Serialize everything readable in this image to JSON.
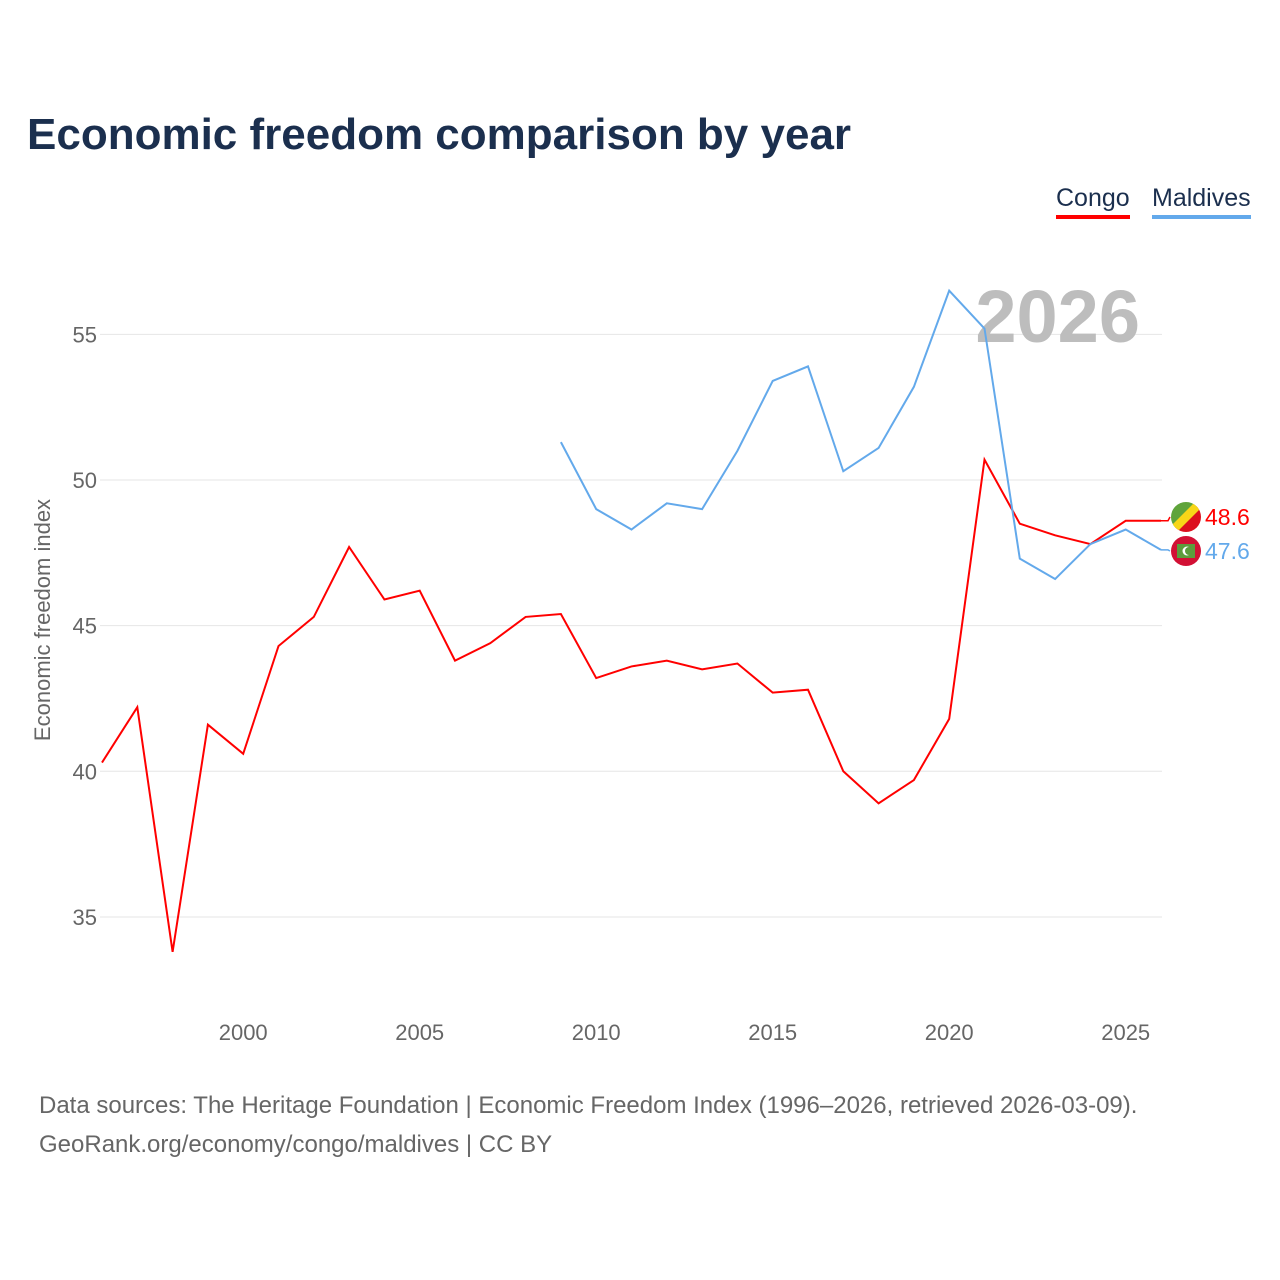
{
  "chart_data": {
    "type": "line",
    "title": "Economic freedom comparison by year",
    "ylabel": "Economic freedom index",
    "xlabel": "",
    "ylim": [
      32.5,
      57.5
    ],
    "xlim": [
      1996,
      2026
    ],
    "yticks": [
      35,
      40,
      45,
      50,
      55
    ],
    "xticks": [
      2000,
      2005,
      2010,
      2015,
      2020,
      2025
    ],
    "watermark_year": "2026",
    "legend_position": "top-right",
    "series": [
      {
        "name": "Congo",
        "color": "#ff0000",
        "end_label": "48.6",
        "x": [
          1996,
          1997,
          1998,
          1999,
          2000,
          2001,
          2002,
          2003,
          2004,
          2005,
          2006,
          2007,
          2008,
          2009,
          2010,
          2011,
          2012,
          2013,
          2014,
          2015,
          2016,
          2017,
          2018,
          2019,
          2020,
          2021,
          2022,
          2023,
          2024,
          2025,
          2026
        ],
        "values": [
          40.3,
          42.2,
          33.8,
          41.6,
          40.6,
          44.3,
          45.3,
          47.7,
          45.9,
          46.2,
          43.8,
          44.4,
          45.3,
          45.4,
          43.2,
          43.6,
          43.8,
          43.5,
          43.7,
          42.7,
          42.8,
          40.0,
          38.9,
          39.7,
          41.8,
          50.7,
          48.5,
          48.1,
          47.8,
          48.6,
          48.6
        ]
      },
      {
        "name": "Maldives",
        "color": "#63a9eb",
        "end_label": "47.6",
        "x": [
          2009,
          2010,
          2011,
          2012,
          2013,
          2014,
          2015,
          2016,
          2017,
          2018,
          2019,
          2020,
          2021,
          2022,
          2023,
          2024,
          2025,
          2026
        ],
        "values": [
          51.3,
          49.0,
          48.3,
          49.2,
          49.0,
          51.0,
          53.4,
          53.9,
          50.3,
          51.1,
          53.2,
          56.5,
          55.2,
          47.3,
          46.6,
          47.8,
          48.3,
          47.6
        ]
      }
    ]
  },
  "footer": {
    "line1": "Data sources: The Heritage Foundation | Economic Freedom Index (1996–2026, retrieved 2026-03-09).",
    "line2": "GeoRank.org/economy/congo/maldives | CC BY"
  }
}
